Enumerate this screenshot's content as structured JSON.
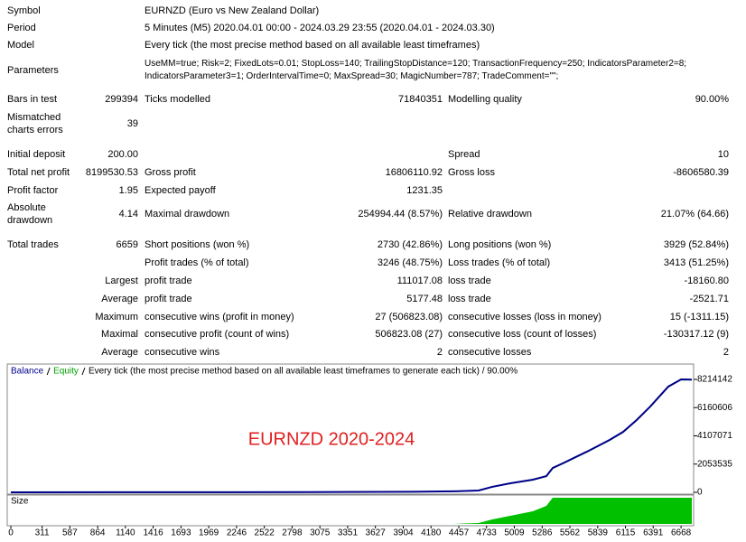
{
  "report": {
    "rows": [
      {
        "label": "Symbol",
        "c2": "EURNZD (Euro vs New Zealand Dollar)"
      },
      {
        "label": "Period",
        "c2": "5 Minutes (M5) 2020.04.01 00:00 - 2024.03.29 23:55 (2020.04.01 - 2024.03.30)"
      },
      {
        "label": "Model",
        "c2": "Every tick (the most precise method based on all available least timeframes)"
      },
      {
        "label": "Parameters",
        "c2": [
          "UseMM=true; Risk=2; FixedLots=0.01; StopLoss=140; TrailingStopDistance=120; TransactionFrequency=250; IndicatorsParameter2=8;",
          "IndicatorsParameter3=1; OrderIntervalTime=0; MaxSpread=30; MagicNumber=787; TradeComment=\"\";"
        ]
      },
      {
        "label": "Bars in test",
        "value": "299394",
        "c2": "Ticks modelled",
        "v2": "71840351",
        "c3": "Modelling quality",
        "v3": "90.00%"
      },
      {
        "label": [
          "Mismatched",
          "charts errors"
        ],
        "value": "39"
      },
      {
        "label": "Initial deposit",
        "value": "200.00",
        "c3": "Spread",
        "v3": "10"
      },
      {
        "label": "Total net profit",
        "value": "8199530.53",
        "c2": "Gross profit",
        "v2": "16806110.92",
        "c3": "Gross loss",
        "v3": "-8606580.39"
      },
      {
        "label": "Profit factor",
        "value": "1.95",
        "c2": "Expected payoff",
        "v2": "1231.35"
      },
      {
        "label": [
          "Absolute",
          "drawdown"
        ],
        "value": "4.14",
        "c2": "Maximal drawdown",
        "v2": "254994.44 (8.57%)",
        "c3": "Relative drawdown",
        "v3": "21.07% (64.66)"
      },
      {
        "label": "Total trades",
        "value": "6659",
        "c2": "Short positions (won %)",
        "v2": "2730 (42.86%)",
        "c3": "Long positions (won %)",
        "v3": "3929 (52.84%)"
      },
      {
        "c2": "Profit trades (% of total)",
        "v2": "3246 (48.75%)",
        "c3": "Loss trades (% of total)",
        "v3": "3413 (51.25%)"
      },
      {
        "value": "Largest",
        "c2": "profit trade",
        "v2": "111017.08",
        "c3": "loss trade",
        "v3": "-18160.80"
      },
      {
        "value": "Average",
        "c2": "profit trade",
        "v2": "5177.48",
        "c3": "loss trade",
        "v3": "-2521.71"
      },
      {
        "value": "Maximum",
        "c2": "consecutive wins (profit in money)",
        "v2": "27 (506823.08)",
        "c3": "consecutive losses (loss in money)",
        "v3": "15 (-1311.15)"
      },
      {
        "value": "Maximal",
        "c2": "consecutive profit (count of wins)",
        "v2": "506823.08 (27)",
        "c3": "consecutive loss (count of losses)",
        "v3": "-130317.12 (9)"
      },
      {
        "value": "Average",
        "c2": "consecutive wins",
        "v2": "2",
        "c3": "consecutive losses",
        "v3": "2"
      }
    ]
  },
  "chart_data": {
    "type": "line",
    "subtitle": "Every tick (the most precise method based on all available least timeframes to generate each tick) / 90.00%",
    "annotation": "EURNZD 2020-2024",
    "x": [
      0,
      1000,
      2000,
      3000,
      4000,
      4400,
      4654,
      4789,
      4969,
      5193,
      5328,
      5391,
      5508,
      5732,
      5957,
      6092,
      6226,
      6361,
      6541,
      6668,
      6775
    ],
    "series": [
      {
        "name": "Balance",
        "color": "#00008b",
        "values": [
          200,
          5000,
          10000,
          20000,
          40000,
          70000,
          130000,
          400000,
          660000,
          920000,
          1180000,
          1770000,
          2170000,
          2960000,
          3810000,
          4400000,
          5260000,
          6240000,
          7690000,
          8214142,
          8199730
        ]
      },
      {
        "name": "Equity",
        "color": "#00a000",
        "values": [
          200,
          5000,
          10000,
          19000,
          39000,
          68000,
          125000,
          390000,
          650000,
          900000,
          1160000,
          1750000,
          2150000,
          2940000,
          3790000,
          4380000,
          5240000,
          6220000,
          7670000,
          8200000,
          8190000
        ]
      }
    ],
    "size": {
      "name": "Size",
      "color": "#00c000",
      "values": [
        0,
        0,
        0,
        0,
        0,
        0,
        1,
        5,
        9,
        14,
        20,
        29,
        29,
        29,
        29,
        29,
        29,
        29,
        29,
        29,
        29
      ],
      "ylim": [
        0,
        30
      ]
    },
    "xlim": [
      0,
      6775
    ],
    "xticks": [
      0,
      311,
      587,
      864,
      1140,
      1416,
      1693,
      1969,
      2246,
      2522,
      2798,
      3075,
      3351,
      3627,
      3904,
      4180,
      4457,
      4733,
      5009,
      5286,
      5562,
      5839,
      6115,
      6391,
      6668
    ],
    "ylim": [
      0,
      9200000
    ],
    "yticks": [
      0,
      2053535,
      4107071,
      6160606,
      8214142
    ],
    "annotation_color": "#e02020"
  }
}
